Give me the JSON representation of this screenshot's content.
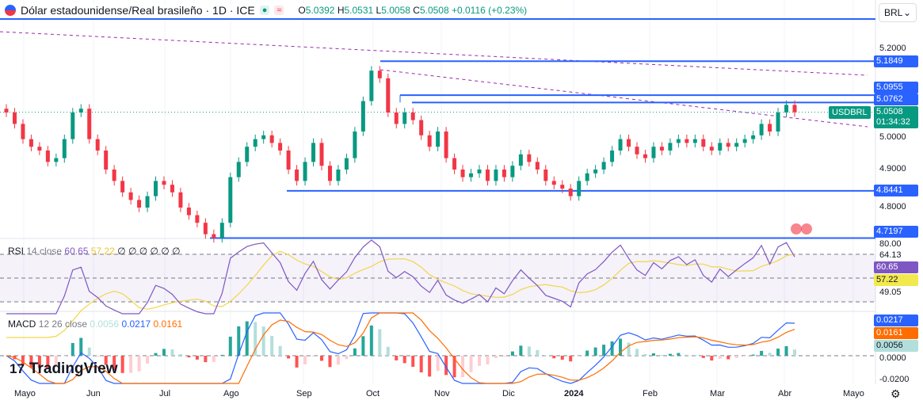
{
  "header": {
    "title": "Dólar estadounidense/Real brasileño · 1D · ICE",
    "open_label": "O",
    "open": "5.0392",
    "high_label": "H",
    "high": "5.0531",
    "low_label": "L",
    "low": "5.0058",
    "close_label": "C",
    "close": "5.0508",
    "change": "+0.0116 (+0.23%)"
  },
  "currency_select": "BRL",
  "symbol_tag": "USDBRL",
  "countdown": "01:34:32",
  "price_axis": [
    "5.2000",
    "5.0000",
    "4.9000",
    "4.8000"
  ],
  "price_lines": [
    {
      "value": "5.1849",
      "color": "#2962ff"
    },
    {
      "value": "5.0955",
      "color": "#2962ff"
    },
    {
      "value": "5.0762",
      "color": "#2962ff"
    },
    {
      "value": "5.0508",
      "color": "#089981"
    },
    {
      "value": "4.8441",
      "color": "#2962ff"
    },
    {
      "value": "4.7197",
      "color": "#2962ff"
    }
  ],
  "rsi": {
    "label": "RSI",
    "params": "14 close",
    "value": "60.65",
    "ma": "57.22",
    "nulls": "∅ ∅ ∅ ∅ ∅ ∅",
    "axis": [
      "80.00",
      "64.13",
      "49.05"
    ],
    "color": "#7e57c2",
    "ma_color": "#f2d649"
  },
  "macd": {
    "label": "MACD",
    "params": "12 26 close",
    "hist": "0.0056",
    "macd": "0.0217",
    "signal": "0.0161",
    "axis": [
      "0.0000",
      "-0.0200"
    ],
    "macd_color": "#2962ff",
    "signal_color": "#ff6d00",
    "hist_color": "#b2dfdb"
  },
  "date_axis": [
    "Mayo",
    "Jun",
    "Jul",
    "Ago",
    "Sep",
    "Oct",
    "Nov",
    "Dic",
    "2024",
    "Feb",
    "Mar",
    "Abr",
    "Mayo"
  ],
  "logo": "TradingView",
  "chart_data": {
    "type": "candlestick",
    "ylim": [
      4.7,
      5.3
    ],
    "x_range": [
      "2023-05",
      "2024-04"
    ],
    "closes": [
      5.05,
      5.02,
      4.98,
      4.96,
      4.95,
      4.92,
      4.93,
      4.98,
      5.05,
      5.06,
      4.98,
      4.95,
      4.9,
      4.87,
      4.84,
      4.82,
      4.8,
      4.83,
      4.87,
      4.86,
      4.84,
      4.8,
      4.78,
      4.76,
      4.73,
      4.72,
      4.76,
      4.88,
      4.92,
      4.96,
      4.98,
      4.99,
      4.97,
      4.95,
      4.9,
      4.87,
      4.92,
      4.97,
      4.91,
      4.87,
      4.9,
      4.93,
      5.0,
      5.08,
      5.16,
      5.14,
      5.05,
      5.02,
      5.05,
      5.03,
      4.99,
      4.96,
      5.0,
      4.93,
      4.9,
      4.88,
      4.89,
      4.9,
      4.87,
      4.9,
      4.88,
      4.91,
      4.94,
      4.92,
      4.9,
      4.87,
      4.86,
      4.85,
      4.83,
      4.87,
      4.89,
      4.9,
      4.92,
      4.95,
      4.98,
      4.96,
      4.94,
      4.93,
      4.96,
      4.95,
      4.97,
      4.98,
      4.97,
      4.98,
      4.96,
      4.95,
      4.97,
      4.96,
      4.97,
      4.98,
      4.99,
      5.02,
      5.0,
      5.05,
      5.07,
      5.0508
    ],
    "up_color": "#089981",
    "down_color": "#f23645"
  }
}
